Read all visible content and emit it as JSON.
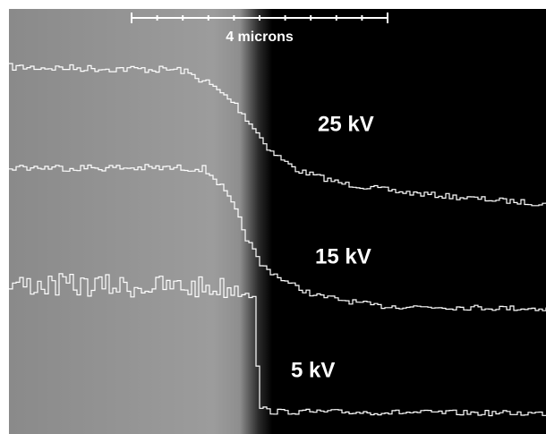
{
  "scale_bar": {
    "label": "4 microns"
  },
  "profiles": [
    {
      "label": "25 kV"
    },
    {
      "label": "15 kV"
    },
    {
      "label": "5 kV"
    }
  ]
}
